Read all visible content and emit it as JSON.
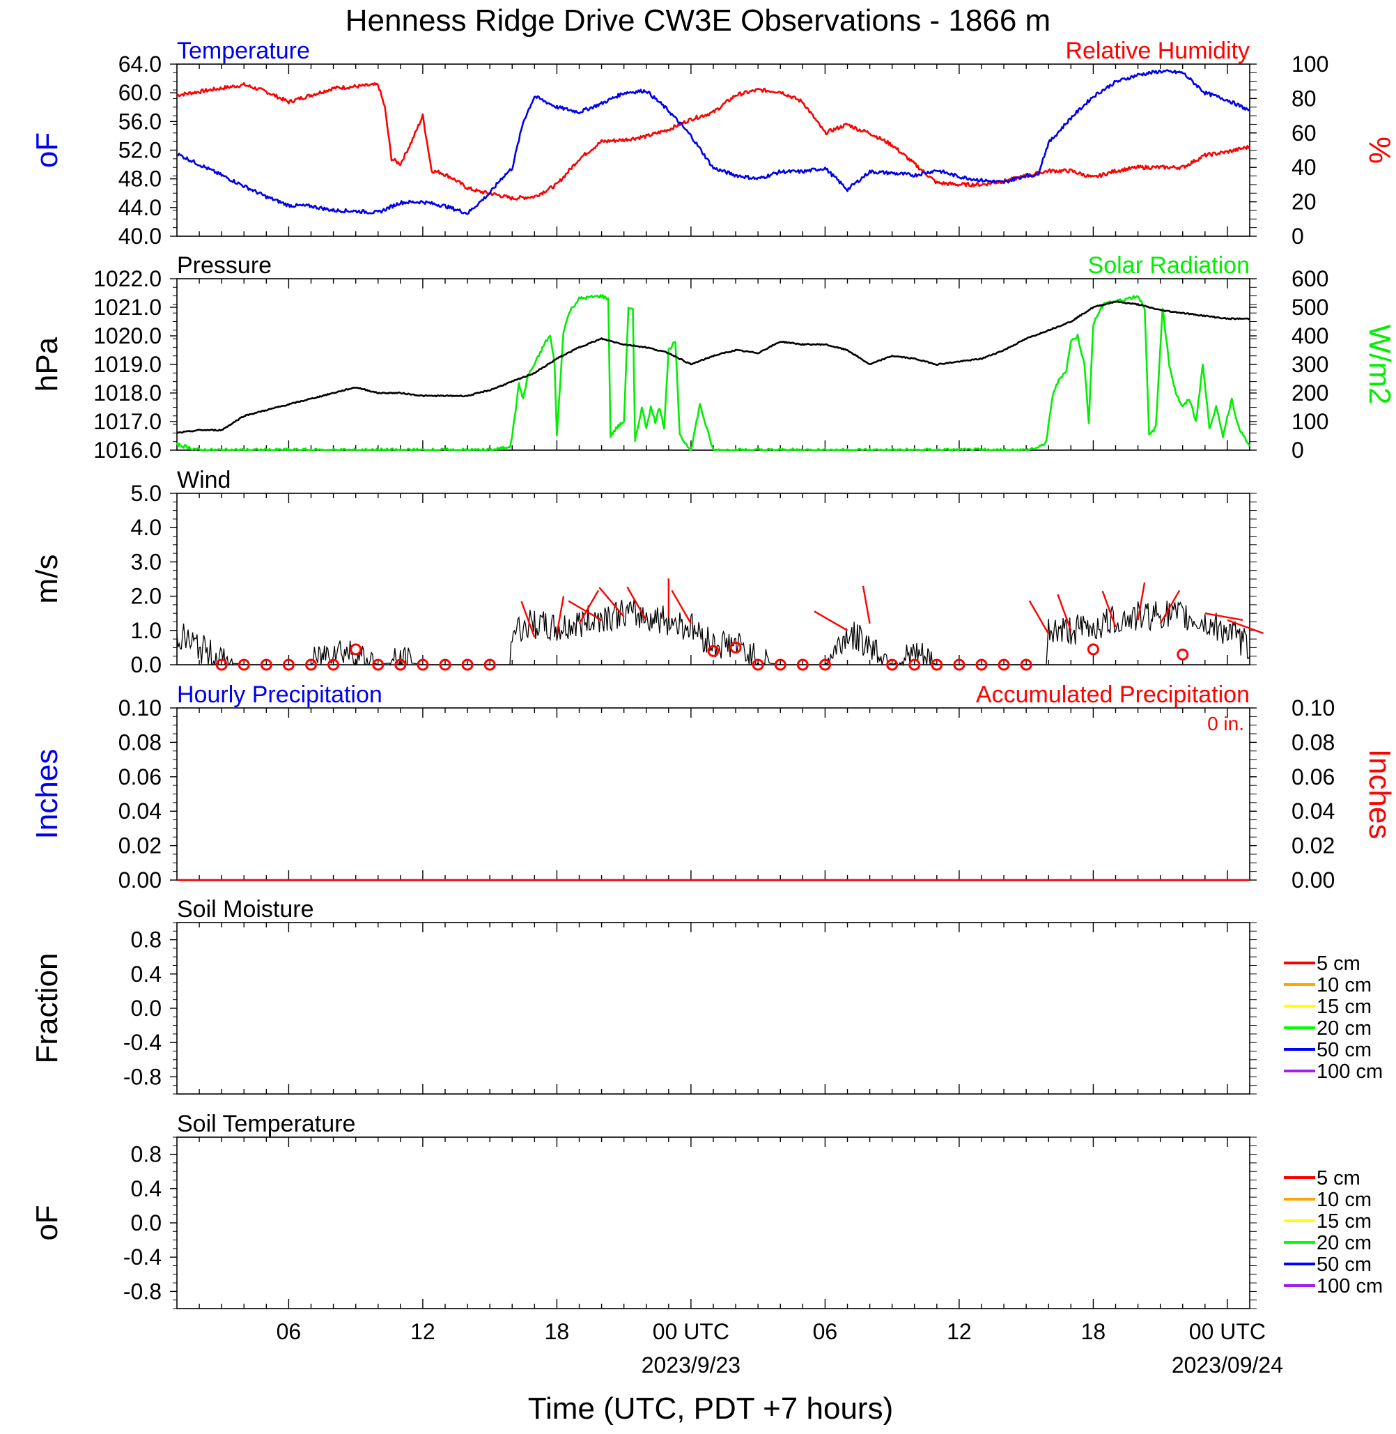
{
  "title": "Henness Ridge Drive CW3E Observations - 1866 m",
  "xlabel": "Time (UTC, PDT +7 hours)",
  "x_axis": {
    "range_hours": [
      0,
      48
    ],
    "tick_labels": [
      {
        "h": 5,
        "text": "06"
      },
      {
        "h": 11,
        "text": "12"
      },
      {
        "h": 17,
        "text": "18"
      },
      {
        "h": 23,
        "text": "00 UTC"
      },
      {
        "h": 29,
        "text": "06"
      },
      {
        "h": 35,
        "text": "12"
      },
      {
        "h": 41,
        "text": "18"
      },
      {
        "h": 47,
        "text": "00 UTC"
      }
    ],
    "date_labels": [
      {
        "h": 23,
        "text": "2023/9/23"
      },
      {
        "h": 47,
        "text": "2023/09/24"
      }
    ]
  },
  "colors": {
    "blue": "#0000ee",
    "red": "#ff0000",
    "green": "#00ee00",
    "black": "#000000"
  },
  "panels": {
    "temp_rh": {
      "left_title": "Temperature",
      "right_title": "Relative Humidity",
      "left_unit": "oF",
      "right_unit": "%",
      "left_ticks": [
        "64.0",
        "60.0",
        "56.0",
        "52.0",
        "48.0",
        "44.0",
        "40.0"
      ],
      "right_ticks": [
        "100",
        "80",
        "60",
        "40",
        "20",
        "0"
      ]
    },
    "press_solar": {
      "left_title": "Pressure",
      "right_title": "Solar Radiation",
      "left_unit": "hPa",
      "right_unit": "W/m2",
      "left_ticks": [
        "1022.0",
        "1021.0",
        "1020.0",
        "1019.0",
        "1018.0",
        "1017.0",
        "1016.0"
      ],
      "right_ticks": [
        "600",
        "500",
        "400",
        "300",
        "200",
        "100",
        "0"
      ]
    },
    "wind": {
      "left_title": "Wind",
      "left_unit": "m/s",
      "left_ticks": [
        "5.0",
        "4.0",
        "3.0",
        "2.0",
        "1.0",
        "0.0"
      ]
    },
    "precip": {
      "left_title": "Hourly Precipitation",
      "right_title": "Accumulated Precipitation",
      "total_note": "0 in.",
      "left_unit": "Inches",
      "right_unit": "Inches",
      "left_ticks": [
        "0.10",
        "0.08",
        "0.06",
        "0.04",
        "0.02",
        "0.00"
      ],
      "right_ticks": [
        "0.10",
        "0.08",
        "0.06",
        "0.04",
        "0.02",
        "0.00"
      ]
    },
    "soil_moist": {
      "left_title": "Soil Moisture",
      "left_unit": "Fraction",
      "left_ticks": [
        "0.8",
        "0.4",
        "0.0",
        "-0.4",
        "-0.8"
      ]
    },
    "soil_temp": {
      "left_title": "Soil Temperature",
      "left_unit": "oF",
      "left_ticks": [
        "0.8",
        "0.4",
        "0.0",
        "-0.4",
        "-0.8"
      ]
    }
  },
  "soil_legend": [
    {
      "label": "5 cm",
      "color": "#ff0000"
    },
    {
      "label": "10 cm",
      "color": "#ffa500"
    },
    {
      "label": "15 cm",
      "color": "#ffff00"
    },
    {
      "label": "20 cm",
      "color": "#00ff00"
    },
    {
      "label": "50 cm",
      "color": "#0000ff"
    },
    {
      "label": "100 cm",
      "color": "#a020f0"
    }
  ],
  "chart_data": [
    {
      "type": "line",
      "panel": "temp_rh",
      "x_unit": "hours since start",
      "series": [
        {
          "name": "Temperature",
          "axis": "left",
          "unit": "degF",
          "ylim": [
            40,
            64
          ],
          "x": [
            0,
            1,
            2,
            3,
            4,
            5,
            6,
            7,
            8,
            9,
            10,
            11,
            12,
            13,
            14,
            14.5,
            15,
            15.5,
            16,
            17,
            18,
            19,
            20,
            21,
            22,
            23,
            24,
            25,
            26,
            27,
            28,
            29,
            30,
            31,
            32,
            33,
            34,
            35,
            36,
            37,
            38,
            38.5,
            39,
            40,
            41,
            42,
            43,
            44,
            45,
            46,
            47,
            48
          ],
          "y": [
            51.5,
            50,
            48.5,
            47,
            45.5,
            44.3,
            44.2,
            43.6,
            43.5,
            43.3,
            44.7,
            44.8,
            44.2,
            43.2,
            46,
            48,
            49.5,
            56,
            59.5,
            58,
            57.3,
            58.5,
            60,
            60.3,
            57.5,
            54,
            49.5,
            48.5,
            48,
            49,
            49,
            49.5,
            46.5,
            49,
            48.8,
            48.5,
            49.2,
            48.3,
            47.8,
            47.5,
            48.5,
            48.5,
            53,
            56.5,
            59.5,
            61.5,
            62.5,
            63,
            62.8,
            60,
            59,
            57.5
          ]
        },
        {
          "name": "Relative Humidity",
          "axis": "right",
          "unit": "%",
          "ylim": [
            0,
            100
          ],
          "x": [
            0,
            1,
            2,
            3,
            4,
            5,
            6,
            7,
            8,
            9,
            9.3,
            9.6,
            10,
            10.5,
            11,
            11.4,
            11.8,
            12.3,
            13,
            13.5,
            14,
            15,
            16,
            17,
            18,
            19,
            20,
            21,
            22,
            23,
            24,
            25,
            26,
            27,
            28,
            29,
            30,
            30.5,
            31,
            32,
            33,
            34,
            35,
            36,
            37,
            38,
            39,
            40,
            41,
            42,
            43,
            44,
            45,
            46,
            47,
            48
          ],
          "y": [
            82,
            84,
            86,
            88,
            84,
            78,
            82,
            86,
            87,
            88,
            75,
            45,
            42,
            55,
            70,
            38,
            37,
            34,
            28,
            26,
            25,
            22,
            23,
            30,
            45,
            55,
            56,
            58,
            62,
            68,
            72,
            82,
            85,
            84,
            78,
            60,
            65,
            62,
            60,
            53,
            42,
            31,
            30,
            30,
            32,
            35,
            38,
            38,
            34,
            38,
            40,
            40,
            40,
            47,
            49,
            52
          ]
        }
      ]
    },
    {
      "type": "line",
      "panel": "press_solar",
      "x_unit": "hours since start",
      "series": [
        {
          "name": "Pressure",
          "axis": "left",
          "unit": "hPa",
          "ylim": [
            1016,
            1022
          ],
          "x": [
            0,
            1,
            2,
            3,
            4,
            5,
            6,
            7,
            8,
            9,
            10,
            11,
            12,
            13,
            14,
            15,
            16,
            17,
            18,
            19,
            20,
            21,
            22,
            23,
            24,
            25,
            26,
            27,
            28,
            29,
            30,
            31,
            32,
            33,
            34,
            35,
            36,
            37,
            38,
            39,
            40,
            41,
            42,
            43,
            44,
            45,
            46,
            47,
            48
          ],
          "y": [
            1016.6,
            1016.7,
            1016.7,
            1017.2,
            1017.4,
            1017.6,
            1017.8,
            1018.0,
            1018.2,
            1018.0,
            1018.0,
            1017.9,
            1017.9,
            1017.9,
            1018.1,
            1018.4,
            1018.7,
            1019.2,
            1019.6,
            1019.9,
            1019.7,
            1019.6,
            1019.4,
            1019.0,
            1019.3,
            1019.5,
            1019.4,
            1019.8,
            1019.7,
            1019.7,
            1019.5,
            1019.0,
            1019.3,
            1019.2,
            1019.0,
            1019.1,
            1019.2,
            1019.5,
            1019.9,
            1020.2,
            1020.5,
            1021.0,
            1021.2,
            1021.1,
            1020.9,
            1020.8,
            1020.7,
            1020.6,
            1020.6
          ]
        },
        {
          "name": "Solar Radiation",
          "axis": "right",
          "unit": "W/m2",
          "ylim": [
            0,
            600
          ],
          "x": [
            0,
            1,
            8,
            14,
            14.5,
            14.9,
            15,
            15.3,
            15.5,
            15.7,
            16,
            16.5,
            16.7,
            16.9,
            17.0,
            17.3,
            17.6,
            18,
            19,
            19.3,
            19.4,
            19.7,
            20,
            20.2,
            20.4,
            20.5,
            20.8,
            21,
            21.2,
            21.4,
            21.6,
            21.8,
            22,
            22.3,
            22.5,
            23,
            23.4,
            23.8,
            24,
            25,
            38,
            38.6,
            38.9,
            39.2,
            39.5,
            39.8,
            40,
            40.3,
            40.6,
            40.8,
            41,
            41.3,
            41.6,
            42,
            43,
            43.3,
            43.5,
            43.8,
            44.1,
            44.4,
            44.7,
            45,
            45.3,
            45.6,
            45.9,
            46.2,
            46.5,
            46.8,
            47.2,
            47.5,
            48
          ],
          "y": [
            20,
            0,
            0,
            0,
            5,
            15,
            50,
            230,
            180,
            260,
            300,
            380,
            400,
            300,
            50,
            420,
            490,
            530,
            540,
            530,
            50,
            80,
            100,
            500,
            490,
            30,
            150,
            80,
            150,
            100,
            150,
            80,
            350,
            380,
            50,
            0,
            160,
            50,
            0,
            0,
            0,
            10,
            30,
            200,
            250,
            280,
            380,
            400,
            300,
            100,
            440,
            490,
            520,
            520,
            540,
            500,
            50,
            80,
            500,
            300,
            200,
            150,
            180,
            100,
            300,
            80,
            150,
            50,
            180,
            80,
            10
          ]
        }
      ]
    },
    {
      "type": "line",
      "panel": "wind",
      "ylim": [
        0,
        5
      ],
      "series": [
        {
          "name": "Wind",
          "unit": "m/s",
          "x": [
            0,
            1,
            2,
            3,
            4,
            5,
            6,
            7,
            8,
            9,
            10,
            11,
            12,
            13,
            14,
            14.9,
            15,
            16,
            17,
            18,
            19,
            20,
            21,
            22,
            23,
            24,
            25,
            26,
            27,
            28,
            29,
            30,
            31,
            32,
            33,
            34,
            35,
            36,
            37,
            38,
            38.9,
            39,
            40,
            41,
            42,
            43,
            44,
            45,
            46,
            47,
            48
          ],
          "y": [
            0.9,
            0.5,
            0.1,
            0.0,
            0.0,
            0.0,
            0.0,
            0.5,
            0.3,
            0.0,
            0.1,
            0.0,
            0.0,
            0.0,
            0.0,
            0.0,
            1.0,
            1.2,
            1.0,
            1.2,
            1.4,
            1.5,
            1.4,
            1.3,
            1.1,
            0.6,
            0.6,
            0.1,
            0.0,
            0.0,
            0.0,
            0.9,
            0.6,
            0.0,
            0.3,
            0.0,
            0.0,
            0.0,
            0.0,
            0.0,
            0.0,
            1.0,
            1.0,
            1.1,
            1.3,
            1.4,
            1.5,
            1.4,
            1.2,
            1.0,
            0.5
          ]
        }
      ]
    },
    {
      "type": "line",
      "panel": "precip",
      "ylim": [
        0,
        0.1
      ],
      "series": [
        {
          "name": "Hourly Precipitation",
          "x": [
            0,
            48
          ],
          "y": [
            0,
            0
          ]
        },
        {
          "name": "Accumulated Precipitation",
          "x": [
            0,
            48
          ],
          "y": [
            0,
            0
          ]
        }
      ]
    },
    {
      "type": "line",
      "panel": "soil_moist",
      "ylim": [
        -1,
        1
      ],
      "series": []
    },
    {
      "type": "line",
      "panel": "soil_temp",
      "ylim": [
        -1,
        1
      ],
      "series": []
    }
  ],
  "wind_barbs": {
    "calm_circles_h": [
      2,
      3,
      4,
      5,
      6,
      7,
      8,
      9,
      10,
      11,
      12,
      13,
      14,
      24,
      25,
      26,
      27,
      28,
      29,
      32,
      33,
      34,
      35,
      36,
      37,
      38,
      41,
      45
    ],
    "calm_circles_v": [
      0.0,
      0.0,
      0.0,
      0.0,
      0.0,
      0.0,
      0.45,
      0.0,
      0.0,
      0.0,
      0.0,
      0.0,
      0.0,
      0.4,
      0.5,
      0.0,
      0.0,
      0.0,
      0.0,
      0.0,
      0.0,
      0.0,
      0.0,
      0.0,
      0.0,
      0.0,
      0.45,
      0.3
    ],
    "barbs": [
      {
        "h": 16,
        "s": 0.8,
        "dir": 340
      },
      {
        "h": 17,
        "s": 0.9,
        "dir": 10
      },
      {
        "h": 18,
        "s": 1.2,
        "dir": 30
      },
      {
        "h": 19,
        "s": 1.3,
        "dir": 300
      },
      {
        "h": 20,
        "s": 1.4,
        "dir": 320
      },
      {
        "h": 21,
        "s": 1.3,
        "dir": 330
      },
      {
        "h": 22,
        "s": 1.4,
        "dir": 0
      },
      {
        "h": 23,
        "s": 1.2,
        "dir": 330
      },
      {
        "h": 30,
        "s": 1.0,
        "dir": 300
      },
      {
        "h": 31,
        "s": 1.2,
        "dir": 350
      },
      {
        "h": 39,
        "s": 0.9,
        "dir": 330
      },
      {
        "h": 40,
        "s": 1.0,
        "dir": 340
      },
      {
        "h": 42,
        "s": 1.1,
        "dir": 340
      },
      {
        "h": 43,
        "s": 1.3,
        "dir": 10
      },
      {
        "h": 44,
        "s": 1.2,
        "dir": 30
      },
      {
        "h": 46,
        "s": 1.5,
        "dir": 100
      },
      {
        "h": 47,
        "s": 1.3,
        "dir": 110
      }
    ]
  }
}
